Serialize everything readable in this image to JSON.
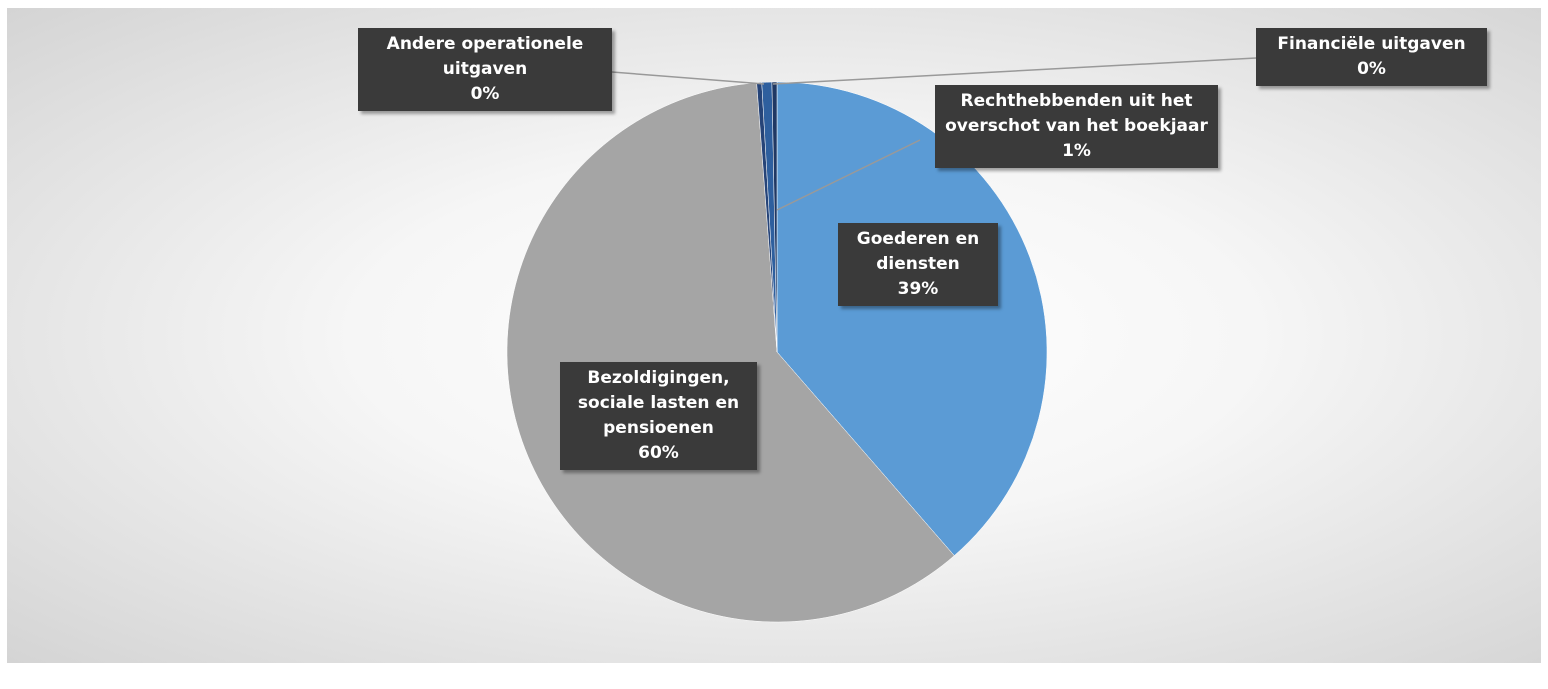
{
  "chart_data": {
    "type": "pie",
    "categories": [
      "Goederen en diensten",
      "Bezoldigingen, sociale lasten en pensioenen",
      "Andere operationele uitgaven",
      "Rechthebbenden uit het overschot van het boekjaar",
      "Financiële uitgaven"
    ],
    "values": [
      38.6,
      60.2,
      0.3,
      0.6,
      0.3
    ],
    "value_labels": [
      "39%",
      "60%",
      "0%",
      "1%",
      "0%"
    ],
    "colors": [
      "#5b9bd5",
      "#a5a5a5",
      "#264478",
      "#2e5f9e",
      "#1f3864"
    ]
  }
}
